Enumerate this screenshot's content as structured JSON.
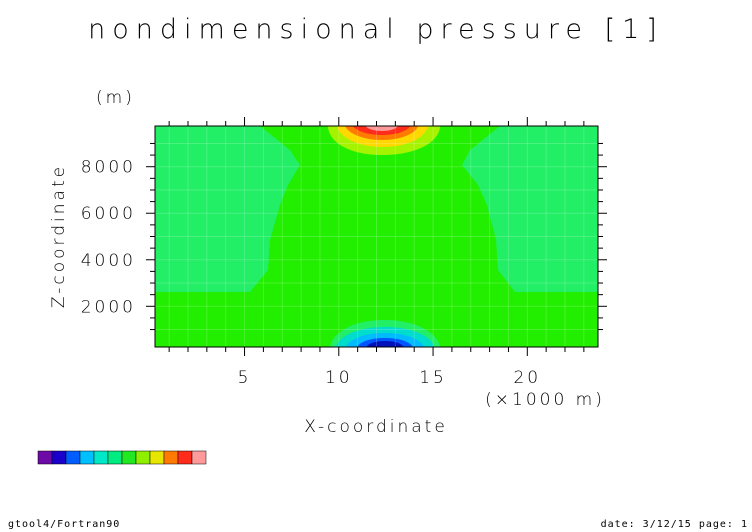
{
  "chart_data": {
    "type": "heatmap",
    "title": "nondimensional pressure [1]",
    "xlabel": "X-coordinate",
    "xunit": "(×1000 m)",
    "ylabel": "Z-coordinate",
    "yunit": "(m)",
    "xlim": [
      0.25,
      23.75
    ],
    "ylim": [
      250,
      9750
    ],
    "xticks": [
      5,
      10,
      15,
      20
    ],
    "yticks": [
      2000,
      4000,
      6000,
      8000
    ],
    "background_level_color": "#22ee00",
    "regions": [
      {
        "label": "high-top",
        "color": "#ff9898"
      },
      {
        "label": "top-red",
        "color": "#ff2c1c"
      },
      {
        "label": "top-orange",
        "color": "#ff7a00"
      },
      {
        "label": "top-yellow",
        "color": "#ffd800"
      },
      {
        "label": "top-lime",
        "color": "#a6f300"
      },
      {
        "label": "side-bands",
        "color": "#22ee66"
      },
      {
        "label": "bottom-cyan",
        "color": "#00ddcc"
      },
      {
        "label": "bottom-lightblue",
        "color": "#00bbff"
      },
      {
        "label": "bottom-blue",
        "color": "#0055ff"
      },
      {
        "label": "bottom-darkblue",
        "color": "#0011bb"
      }
    ],
    "colorbar": [
      "#6d0aa6",
      "#1a00c8",
      "#005eff",
      "#00bfff",
      "#00e8c8",
      "#00ec82",
      "#22e822",
      "#8ef000",
      "#e6e600",
      "#ff7a00",
      "#ff2c1c",
      "#ff9a9a"
    ]
  },
  "footer": {
    "left": "gtool4/Fortran90",
    "right": "date: 3/12/15 page: 1"
  }
}
